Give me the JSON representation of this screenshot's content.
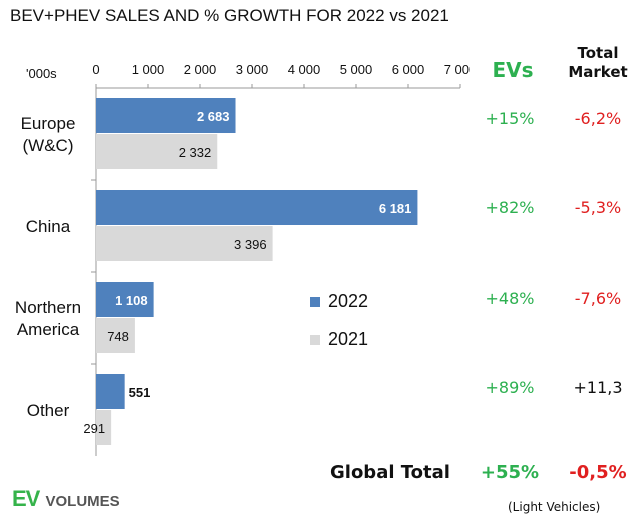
{
  "title": "BEV+PHEV SALES AND % GROWTH FOR 2022 vs 2021",
  "unit_label": "'000s",
  "colors": {
    "s2022": "#4f81bd",
    "s2021": "#d9d9d9",
    "green": "#2db050",
    "red": "#e02020",
    "black": "#111111"
  },
  "chart_data": {
    "type": "bar",
    "orientation": "horizontal",
    "categories": [
      "Europe\n(W&C)",
      "China",
      "Northern\nAmerica",
      "Other"
    ],
    "series": [
      {
        "name": "2022",
        "values": [
          2683,
          6181,
          1108,
          551
        ],
        "labels": [
          "2 683",
          "6 181",
          "1 108",
          "551"
        ]
      },
      {
        "name": "2021",
        "values": [
          2332,
          3396,
          748,
          291
        ],
        "labels": [
          "2 332",
          "3 396",
          "748",
          "291"
        ]
      }
    ],
    "xlim": [
      0,
      7000
    ],
    "x_ticks": [
      0,
      1000,
      2000,
      3000,
      4000,
      5000,
      6000,
      7000
    ],
    "x_tick_labels": [
      "0",
      "1 000",
      "2 000",
      "3 000",
      "4 000",
      "5 000",
      "6 000",
      "7 000"
    ],
    "x_axis_position": "top",
    "grid": false,
    "legend_position": "center-right"
  },
  "table": {
    "evs_header": "EVs",
    "tm_header": "Total\nMarket",
    "rows": [
      {
        "evs": "+15%",
        "tm": "-6,2%",
        "tm_color": "red"
      },
      {
        "evs": "+82%",
        "tm": "-5,3%",
        "tm_color": "red"
      },
      {
        "evs": "+48%",
        "tm": "-7,6%",
        "tm_color": "red"
      },
      {
        "evs": "+89%",
        "tm": "+11,3",
        "tm_color": "black"
      }
    ],
    "global_label": "Global Total",
    "global_evs": "+55%",
    "global_tm": "-0,5%"
  },
  "logo": {
    "ev": "EV",
    "volumes": "VOLUMES"
  },
  "note": "(Light Vehicles)"
}
